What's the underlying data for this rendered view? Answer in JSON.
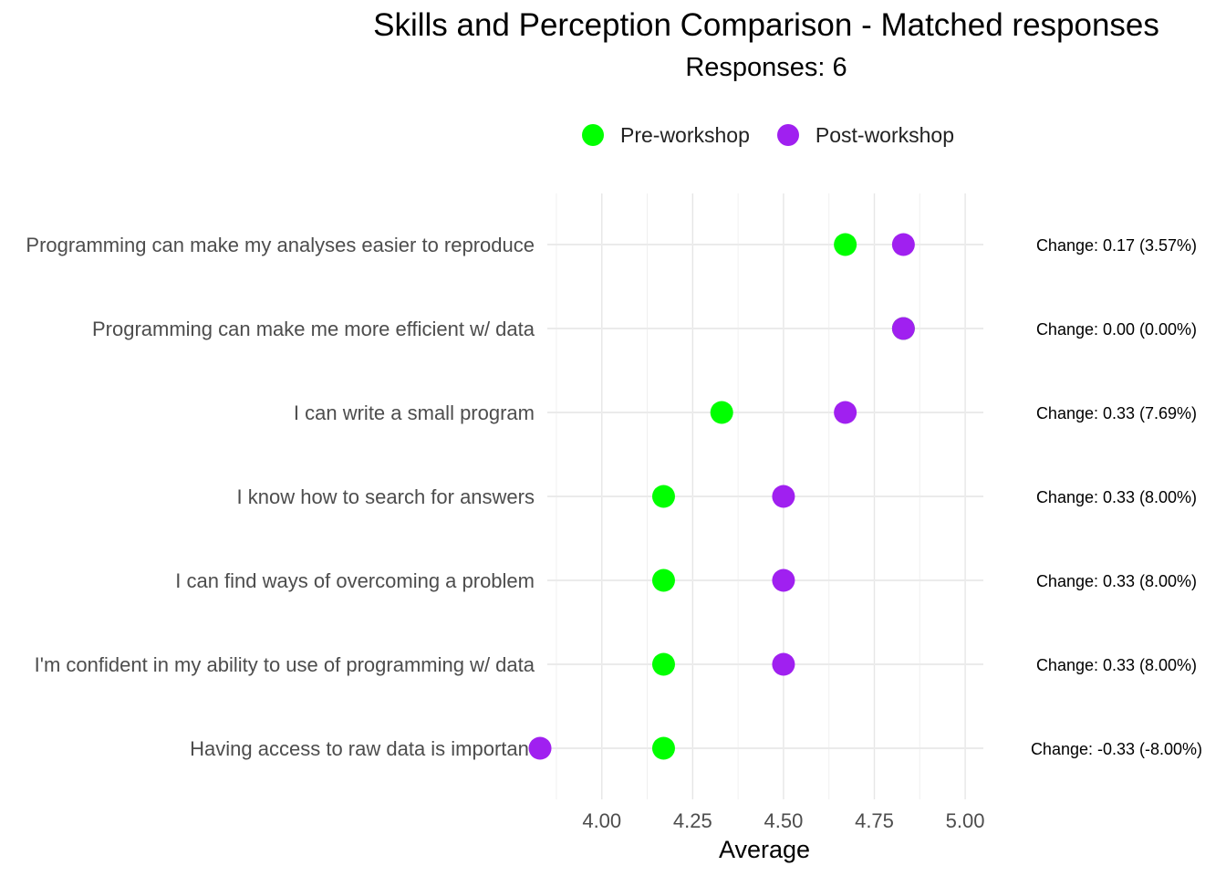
{
  "chart_data": {
    "type": "scatter",
    "title": "Skills and Perception Comparison - Matched responses",
    "subtitle": "Responses: 6",
    "xlabel": "Average",
    "ylabel": "",
    "xlim": [
      3.85,
      5.05
    ],
    "xticks": [
      "4.00",
      "4.25",
      "4.50",
      "4.75",
      "5.00"
    ],
    "grid": true,
    "legend_position": "top",
    "categories": [
      "Programming can make my analyses easier to reproduce",
      "Programming can make me more efficient w/ data",
      "I can write a small program",
      "I know how to search for answers",
      "I can find ways of overcoming a problem",
      "I'm confident in my ability to use of programming w/ data",
      "Having access to raw data is important"
    ],
    "series": [
      {
        "name": "Pre-workshop",
        "color": "#00ff00",
        "values": [
          4.67,
          4.83,
          4.33,
          4.17,
          4.17,
          4.17,
          4.17
        ]
      },
      {
        "name": "Post-workshop",
        "color": "#a020f0",
        "values": [
          4.83,
          4.83,
          4.67,
          4.5,
          4.5,
          4.5,
          3.83
        ]
      }
    ],
    "annotations": [
      "Change: 0.17 (3.57%)",
      "Change: 0.00 (0.00%)",
      "Change: 0.33 (7.69%)",
      "Change: 0.33 (8.00%)",
      "Change: 0.33 (8.00%)",
      "Change: 0.33 (8.00%)",
      "Change: -0.33 (-8.00%)"
    ]
  }
}
